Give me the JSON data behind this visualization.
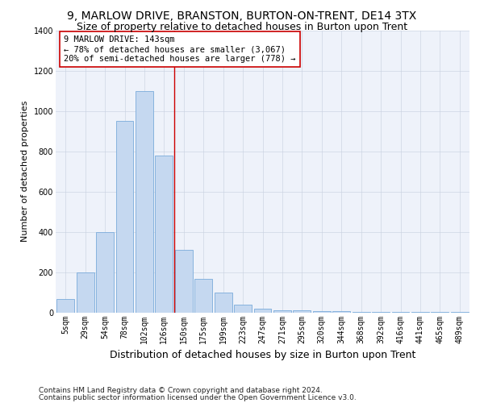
{
  "title": "9, MARLOW DRIVE, BRANSTON, BURTON-ON-TRENT, DE14 3TX",
  "subtitle": "Size of property relative to detached houses in Burton upon Trent",
  "xlabel": "Distribution of detached houses by size in Burton upon Trent",
  "ylabel": "Number of detached properties",
  "footnote1": "Contains HM Land Registry data © Crown copyright and database right 2024.",
  "footnote2": "Contains public sector information licensed under the Open Government Licence v3.0.",
  "categories": [
    "5sqm",
    "29sqm",
    "54sqm",
    "78sqm",
    "102sqm",
    "126sqm",
    "150sqm",
    "175sqm",
    "199sqm",
    "223sqm",
    "247sqm",
    "271sqm",
    "295sqm",
    "320sqm",
    "344sqm",
    "368sqm",
    "392sqm",
    "416sqm",
    "441sqm",
    "465sqm",
    "489sqm"
  ],
  "values": [
    65,
    200,
    400,
    950,
    1100,
    780,
    310,
    165,
    100,
    37,
    18,
    12,
    10,
    8,
    5,
    3,
    2,
    2,
    1,
    1,
    1
  ],
  "bar_color": "#c5d8f0",
  "bar_edgecolor": "#7aabda",
  "vline_x": 5.5,
  "vline_color": "#cc0000",
  "annotation_text": "9 MARLOW DRIVE: 143sqm\n← 78% of detached houses are smaller (3,067)\n20% of semi-detached houses are larger (778) →",
  "annotation_box_edgecolor": "#cc0000",
  "annotation_box_facecolor": "white",
  "ylim": [
    0,
    1400
  ],
  "yticks": [
    0,
    200,
    400,
    600,
    800,
    1000,
    1200,
    1400
  ],
  "bg_color": "#eef2fa",
  "fig_bg_color": "#ffffff",
  "title_fontsize": 10,
  "subtitle_fontsize": 9,
  "xlabel_fontsize": 9,
  "ylabel_fontsize": 8,
  "tick_fontsize": 7,
  "annotation_fontsize": 7.5,
  "footnote_fontsize": 6.5
}
